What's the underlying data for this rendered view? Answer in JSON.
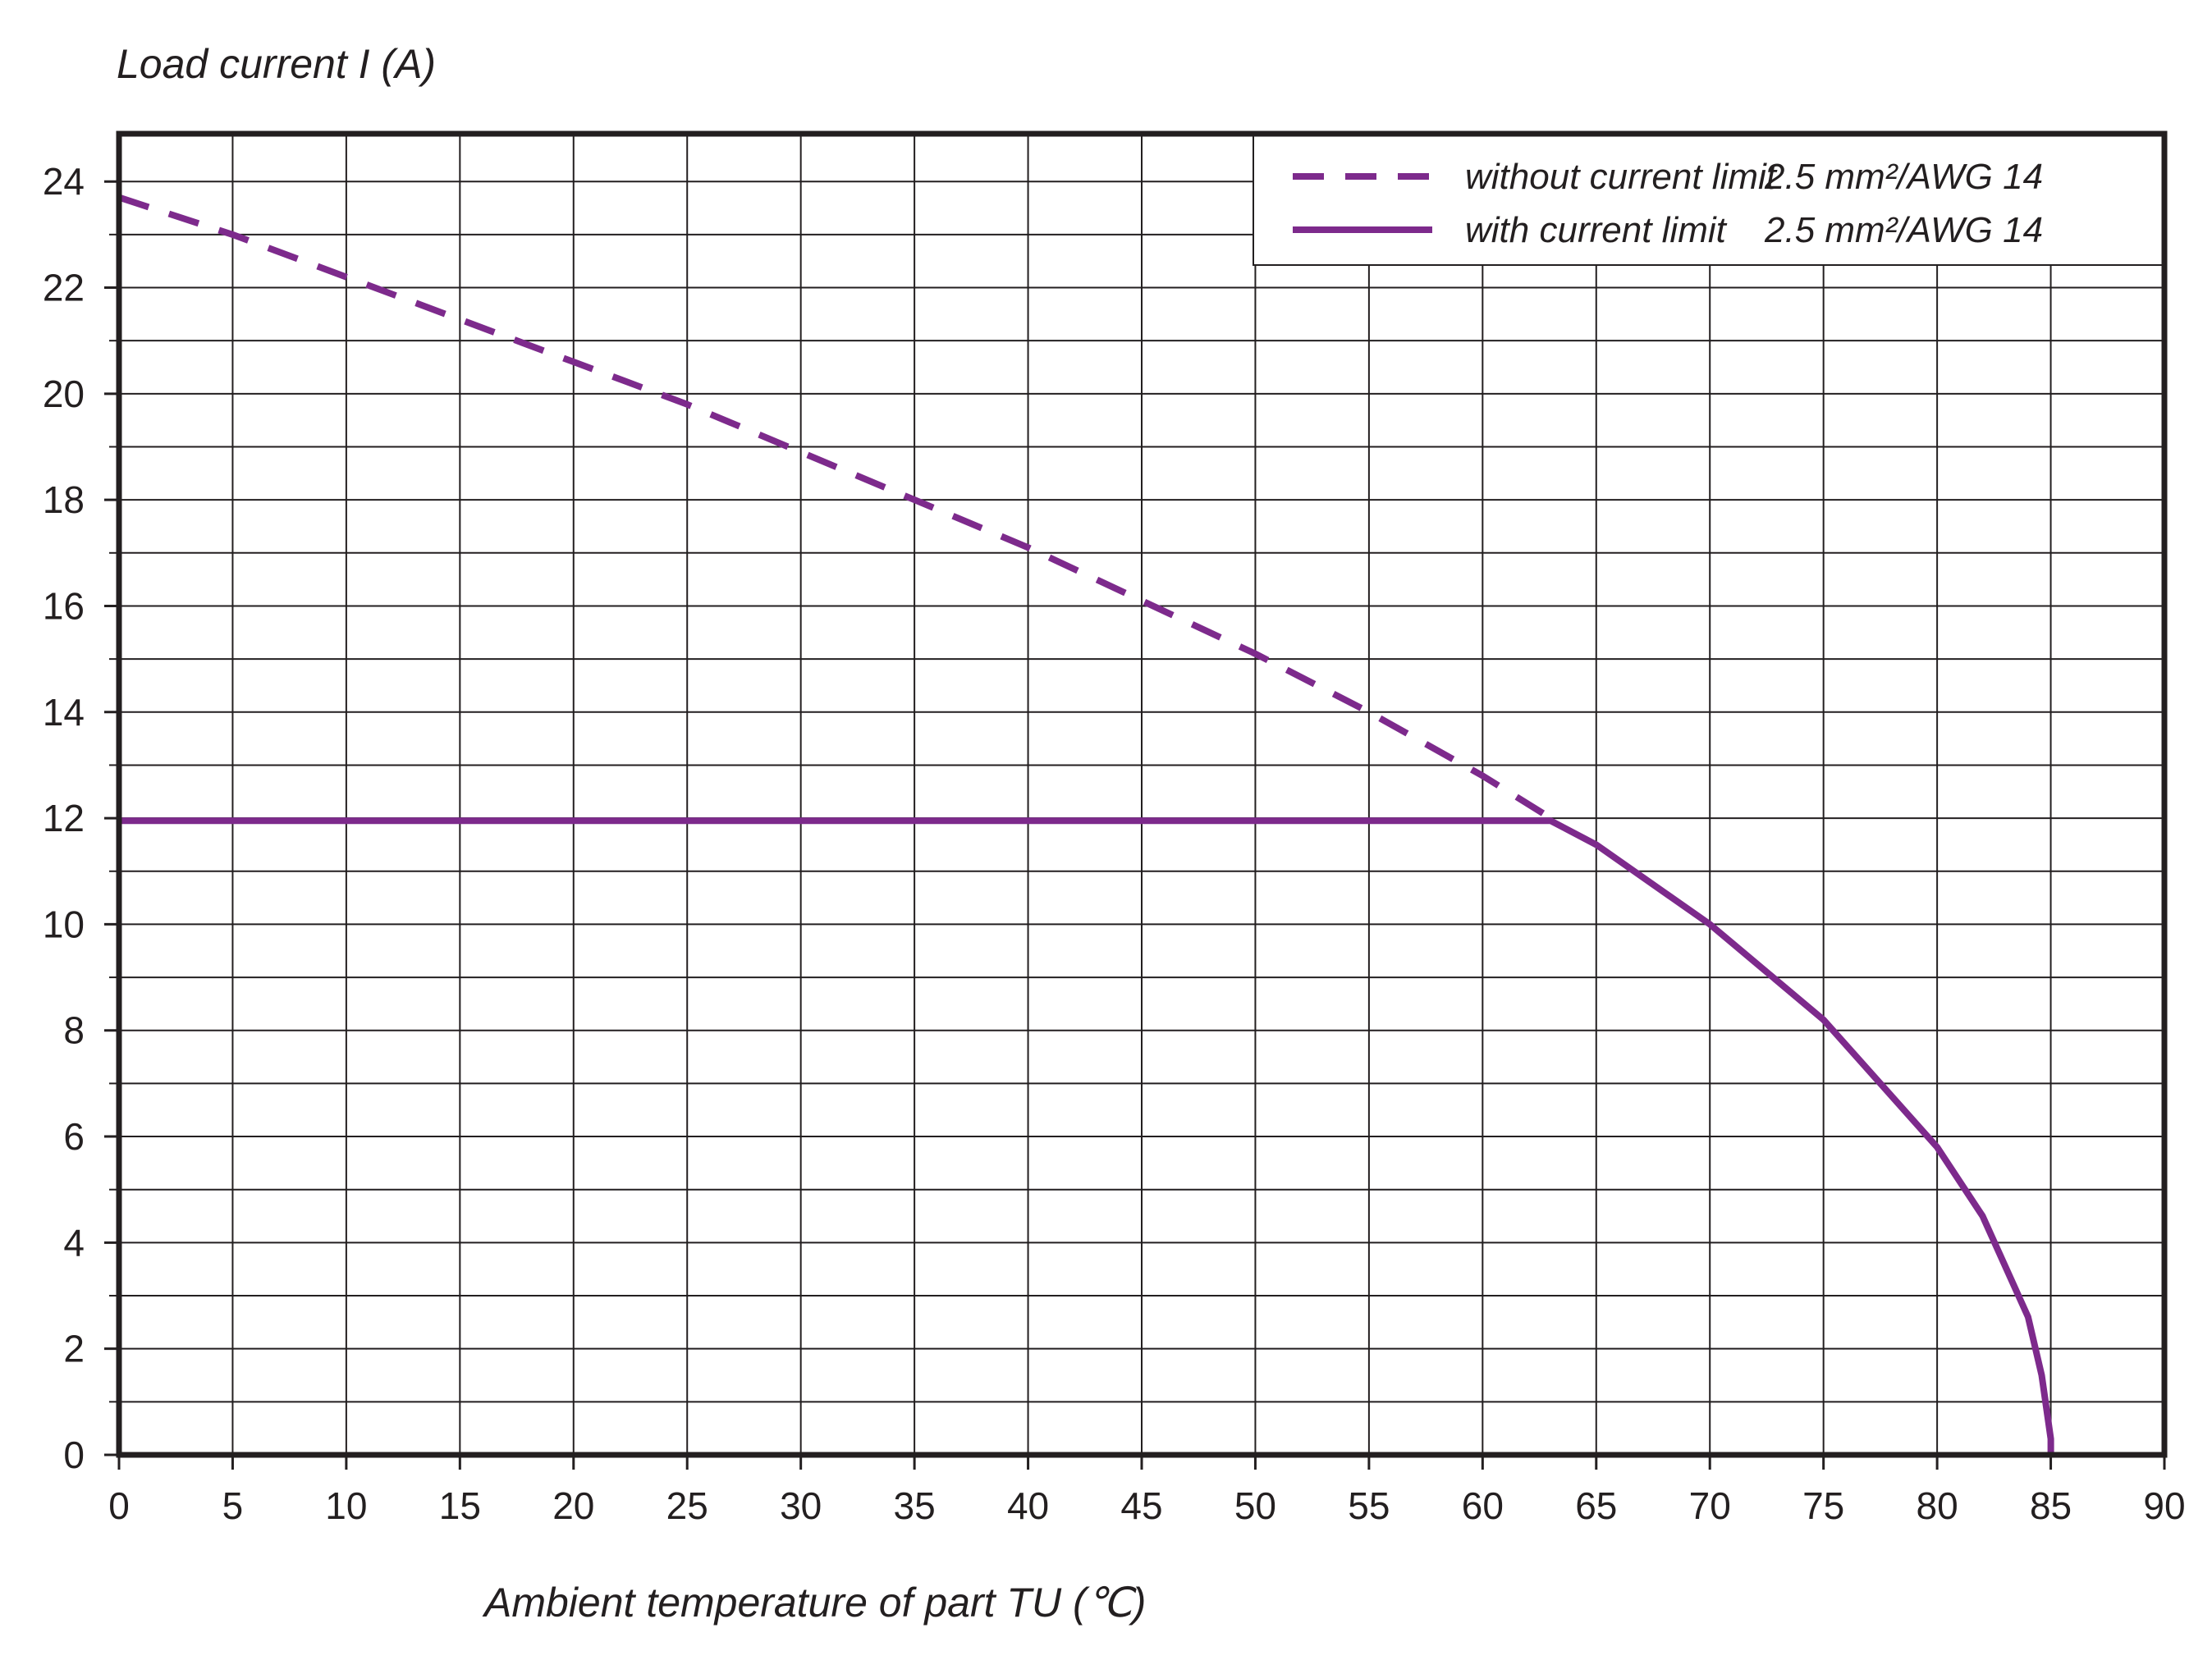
{
  "chart_data": {
    "type": "line",
    "xlabel": "Ambient temperature of part TU (℃)",
    "ylabel": "Load current I (A)",
    "xlim": [
      0,
      90
    ],
    "ylim": [
      0,
      24.9
    ],
    "x_ticks": [
      "0",
      "5",
      "10",
      "15",
      "20",
      "25",
      "30",
      "35",
      "40",
      "45",
      "50",
      "55",
      "60",
      "65",
      "70",
      "75",
      "80",
      "85",
      "90"
    ],
    "y_ticks": [
      "0",
      "2",
      "4",
      "6",
      "8",
      "10",
      "12",
      "14",
      "16",
      "18",
      "20",
      "22",
      "24"
    ],
    "x_tick_values": [
      0,
      5,
      10,
      15,
      20,
      25,
      30,
      35,
      40,
      45,
      50,
      55,
      60,
      65,
      70,
      75,
      80,
      85,
      90
    ],
    "y_tick_values": [
      0,
      2,
      4,
      6,
      8,
      10,
      12,
      14,
      16,
      18,
      20,
      22,
      24
    ],
    "grid": true,
    "legend_position": "top-right",
    "color": "#7d2a8c",
    "series": [
      {
        "name": "without current limit",
        "spec": "2.5 mm²/AWG 14",
        "style": "dashed",
        "x": [
          0,
          5,
          10,
          15,
          20,
          25,
          30,
          35,
          40,
          45,
          50,
          55,
          60,
          63
        ],
        "y": [
          23.7,
          23.0,
          22.2,
          21.4,
          20.6,
          19.8,
          18.9,
          18.0,
          17.1,
          16.1,
          15.1,
          14.0,
          12.8,
          12.0
        ]
      },
      {
        "name": "with current limit",
        "spec": "2.5 mm²/AWG 14",
        "style": "solid",
        "x": [
          0,
          63,
          65,
          70,
          75,
          80,
          82,
          84,
          84.6,
          85,
          85
        ],
        "y": [
          11.95,
          11.95,
          11.5,
          10.0,
          8.2,
          5.8,
          4.5,
          2.6,
          1.5,
          0.3,
          0
        ]
      }
    ]
  }
}
